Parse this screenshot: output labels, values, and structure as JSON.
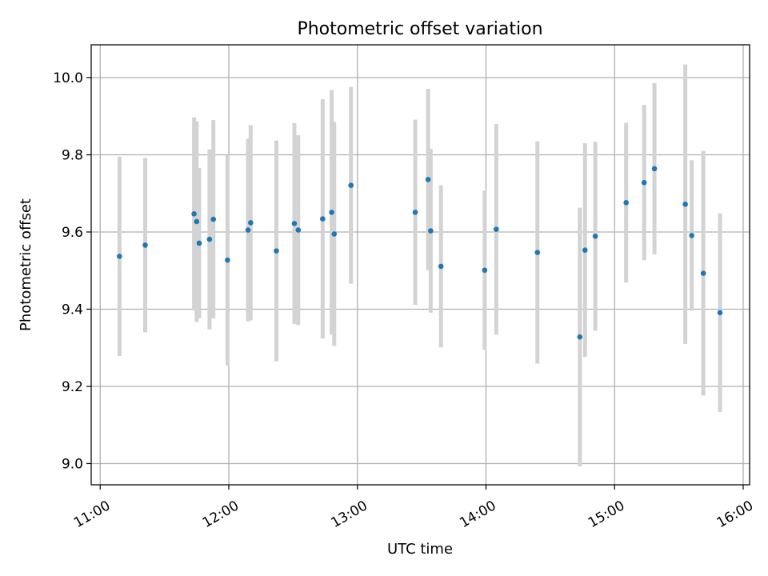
{
  "chart_data": {
    "type": "scatter",
    "title": "Photometric offset variation",
    "xlabel": "UTC time",
    "ylabel": "Photometric offset",
    "x_unit": "hours UTC",
    "xlim": [
      10.93,
      16.05
    ],
    "ylim": [
      8.945,
      10.085
    ],
    "x_ticks": [
      {
        "value": 11,
        "label": "11:00"
      },
      {
        "value": 12,
        "label": "12:00"
      },
      {
        "value": 13,
        "label": "13:00"
      },
      {
        "value": 14,
        "label": "14:00"
      },
      {
        "value": 15,
        "label": "15:00"
      },
      {
        "value": 16,
        "label": "16:00"
      }
    ],
    "y_ticks": [
      {
        "value": 9.0,
        "label": "9.0"
      },
      {
        "value": 9.2,
        "label": "9.2"
      },
      {
        "value": 9.4,
        "label": "9.4"
      },
      {
        "value": 9.6,
        "label": "9.6"
      },
      {
        "value": 9.8,
        "label": "9.8"
      },
      {
        "value": 10.0,
        "label": "10.0"
      }
    ],
    "grid": true,
    "point_color": "#1f77b4",
    "errorbar_color": "#d3d3d3",
    "points": [
      {
        "x": 11.15,
        "y": 9.537,
        "err": 0.258
      },
      {
        "x": 11.35,
        "y": 9.566,
        "err": 0.226
      },
      {
        "x": 11.73,
        "y": 9.647,
        "err": 0.25
      },
      {
        "x": 11.75,
        "y": 9.627,
        "err": 0.26
      },
      {
        "x": 11.77,
        "y": 9.571,
        "err": 0.195
      },
      {
        "x": 11.85,
        "y": 9.581,
        "err": 0.233
      },
      {
        "x": 11.88,
        "y": 9.633,
        "err": 0.257
      },
      {
        "x": 11.99,
        "y": 9.527,
        "err": 0.273
      },
      {
        "x": 12.15,
        "y": 9.605,
        "err": 0.237
      },
      {
        "x": 12.17,
        "y": 9.624,
        "err": 0.253
      },
      {
        "x": 12.37,
        "y": 9.551,
        "err": 0.286
      },
      {
        "x": 12.51,
        "y": 9.622,
        "err": 0.26
      },
      {
        "x": 12.54,
        "y": 9.605,
        "err": 0.246
      },
      {
        "x": 12.73,
        "y": 9.634,
        "err": 0.31
      },
      {
        "x": 12.8,
        "y": 9.651,
        "err": 0.317
      },
      {
        "x": 12.82,
        "y": 9.595,
        "err": 0.29
      },
      {
        "x": 12.95,
        "y": 9.721,
        "err": 0.255
      },
      {
        "x": 13.45,
        "y": 9.651,
        "err": 0.24
      },
      {
        "x": 13.55,
        "y": 9.736,
        "err": 0.235
      },
      {
        "x": 13.57,
        "y": 9.603,
        "err": 0.212
      },
      {
        "x": 13.65,
        "y": 9.511,
        "err": 0.21
      },
      {
        "x": 13.99,
        "y": 9.501,
        "err": 0.206
      },
      {
        "x": 14.08,
        "y": 9.607,
        "err": 0.273
      },
      {
        "x": 14.4,
        "y": 9.547,
        "err": 0.288
      },
      {
        "x": 14.73,
        "y": 9.328,
        "err": 0.335
      },
      {
        "x": 14.77,
        "y": 9.553,
        "err": 0.277
      },
      {
        "x": 14.85,
        "y": 9.589,
        "err": 0.245
      },
      {
        "x": 15.09,
        "y": 9.676,
        "err": 0.207
      },
      {
        "x": 15.23,
        "y": 9.728,
        "err": 0.201
      },
      {
        "x": 15.31,
        "y": 9.764,
        "err": 0.222
      },
      {
        "x": 15.55,
        "y": 9.672,
        "err": 0.362
      },
      {
        "x": 15.6,
        "y": 9.591,
        "err": 0.195
      },
      {
        "x": 15.69,
        "y": 9.493,
        "err": 0.317
      },
      {
        "x": 15.82,
        "y": 9.391,
        "err": 0.257
      }
    ]
  }
}
